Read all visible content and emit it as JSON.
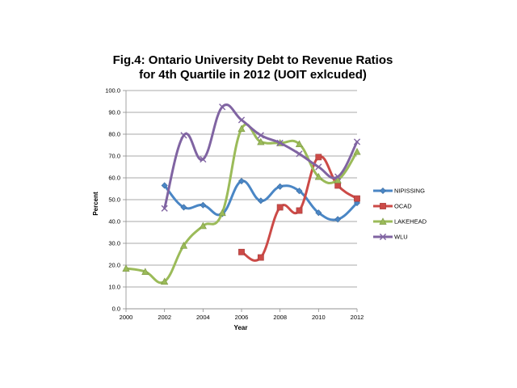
{
  "chart_data": {
    "type": "line",
    "title_lines": [
      "Fig.4: Ontario University Debt to Revenue Ratios",
      "for 4th Quartile in 2012 (UOIT exlcuded)"
    ],
    "xlabel": "Year",
    "ylabel": "Percent",
    "xlim": [
      2000,
      2012
    ],
    "ylim": [
      0,
      100
    ],
    "x_ticks": [
      "2000",
      "2002",
      "2004",
      "2006",
      "2008",
      "2010",
      "2012"
    ],
    "y_ticks": [
      "0.0",
      "10.0",
      "20.0",
      "30.0",
      "40.0",
      "50.0",
      "60.0",
      "70.0",
      "80.0",
      "90.0",
      "100.0"
    ],
    "grid": true,
    "legend_position": "right",
    "series": [
      {
        "name": "NIPISSING",
        "color": "#4a86c5",
        "marker": "diamond",
        "points": [
          [
            2002,
            56.5
          ],
          [
            2003,
            46.5
          ],
          [
            2004,
            47.5
          ],
          [
            2005,
            43.5
          ],
          [
            2006,
            58.5
          ],
          [
            2007,
            49.5
          ],
          [
            2008,
            56.0
          ],
          [
            2009,
            54.0
          ],
          [
            2010,
            44.0
          ],
          [
            2011,
            41.0
          ],
          [
            2012,
            48.5
          ]
        ]
      },
      {
        "name": "OCAD",
        "color": "#cc4a47",
        "marker": "square",
        "points": [
          [
            2006,
            26.0
          ],
          [
            2007,
            23.5
          ],
          [
            2008,
            46.5
          ],
          [
            2009,
            45.0
          ],
          [
            2010,
            69.5
          ],
          [
            2011,
            56.5
          ],
          [
            2012,
            50.5
          ]
        ]
      },
      {
        "name": "LAKEHEAD",
        "color": "#9bbb59",
        "marker": "triangle",
        "points": [
          [
            2000,
            18.5
          ],
          [
            2001,
            17.0
          ],
          [
            2002,
            12.5
          ],
          [
            2003,
            29.0
          ],
          [
            2004,
            38.0
          ],
          [
            2005,
            44.0
          ],
          [
            2006,
            82.5
          ],
          [
            2007,
            76.5
          ],
          [
            2008,
            76.0
          ],
          [
            2009,
            75.5
          ],
          [
            2010,
            60.5
          ],
          [
            2011,
            59.0
          ],
          [
            2012,
            72.0
          ]
        ]
      },
      {
        "name": "WLU",
        "color": "#8064a2",
        "marker": "cross",
        "points": [
          [
            2002,
            46.0
          ],
          [
            2003,
            79.5
          ],
          [
            2004,
            68.5
          ],
          [
            2005,
            92.5
          ],
          [
            2006,
            86.5
          ],
          [
            2007,
            79.5
          ],
          [
            2008,
            76.0
          ],
          [
            2009,
            71.0
          ],
          [
            2010,
            65.0
          ],
          [
            2011,
            60.5
          ],
          [
            2012,
            76.5
          ]
        ]
      }
    ]
  }
}
